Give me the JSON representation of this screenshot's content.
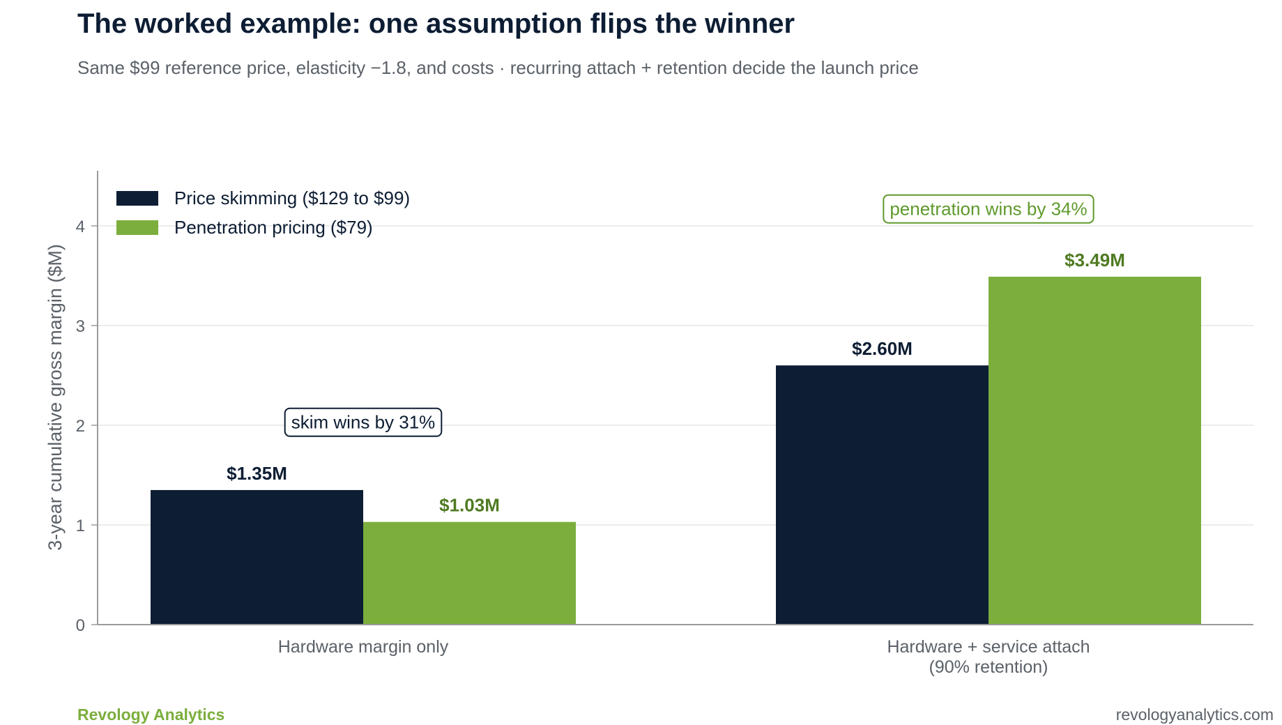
{
  "chart_data": {
    "type": "bar",
    "title": "The worked example: one assumption flips the winner",
    "subtitle": "Same $99 reference price, elasticity −1.8, and costs · recurring attach + retention decide the launch price",
    "ylabel": "3-year cumulative gross margin ($M)",
    "xlabel": "",
    "ylim": [
      0,
      4.55
    ],
    "yticks": [
      0,
      1,
      2,
      3,
      4
    ],
    "ytick_labels": [
      "0",
      "1",
      "2",
      "3",
      "4"
    ],
    "grid": true,
    "legend_position": "top-left",
    "categories": [
      [
        "Hardware margin only"
      ],
      [
        "Hardware + service attach",
        "(90% retention)"
      ]
    ],
    "series": [
      {
        "name": "Price skimming ($129 to $99)",
        "color": "#0d1d33",
        "values": [
          1.35,
          2.6
        ],
        "labels": [
          "$1.35M",
          "$2.60M"
        ]
      },
      {
        "name": "Penetration pricing ($79)",
        "color": "#7cae3d",
        "label_color": "#4f7a22",
        "values": [
          1.03,
          3.49
        ],
        "labels": [
          "$1.03M",
          "$3.49M"
        ]
      }
    ],
    "annotations": [
      {
        "text": "skim wins by 31%",
        "category": 0,
        "y": 2.03,
        "color": "#0d1d33"
      },
      {
        "text": "penetration wins by 34%",
        "category": 1,
        "y": 4.17,
        "color": "#5f9a2c"
      }
    ]
  },
  "footer": {
    "brand": "Revology Analytics",
    "url": "revologyanalytics.com"
  }
}
